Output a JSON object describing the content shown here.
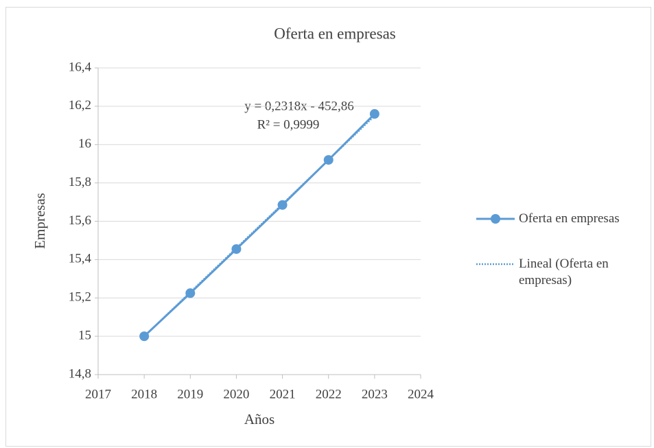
{
  "chart_data": {
    "type": "line",
    "title": "Oferta en empresas",
    "x_label": "Años",
    "y_label": "Empresas",
    "annotations": [
      "y = 0,2318x - 452,86",
      "R² = 0,9999"
    ],
    "x": [
      2018,
      2019,
      2020,
      2021,
      2022,
      2023
    ],
    "series": [
      {
        "name": "Oferta en empresas",
        "color": "#5b9bd5",
        "values": [
          15.0,
          15.225,
          15.455,
          15.685,
          15.92,
          16.16
        ],
        "style": "solid",
        "markers": true
      },
      {
        "name": "Lineal (Oferta en empresas)",
        "color": "#5b9bd5",
        "values": [
          15.0,
          15.23,
          15.46,
          15.69,
          15.92,
          16.15
        ],
        "style": "dotted",
        "markers": false
      }
    ],
    "xlim": [
      2017,
      2024
    ],
    "xticks": [
      2017,
      2018,
      2019,
      2020,
      2021,
      2022,
      2023,
      2024
    ],
    "ylim": [
      14.8,
      16.4
    ],
    "yticks": [
      {
        "value": 14.8,
        "label": "14,8"
      },
      15,
      {
        "value": 15.2,
        "label": "15,2"
      },
      {
        "value": 15.4,
        "label": "15,4"
      },
      {
        "value": 15.6,
        "label": "15,6"
      },
      {
        "value": 15.8,
        "label": "15,8"
      },
      16,
      {
        "value": 16.2,
        "label": "16,2"
      },
      {
        "value": 16.4,
        "label": "16,4"
      }
    ],
    "grid": true,
    "legend": "right"
  }
}
